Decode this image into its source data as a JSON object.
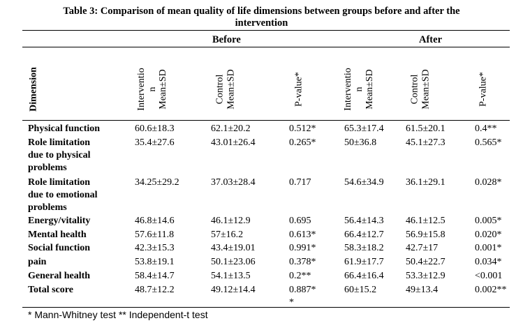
{
  "title_line1": "Table 3: Comparison of mean quality of life dimensions between groups before and after the",
  "title_line2": "intervention",
  "groups": {
    "before": "Before",
    "after": "After"
  },
  "column_headers": {
    "dimension": "Dimension",
    "intervention": "Interventio\nn\nMean±SD",
    "control": "Control\nMean±SD",
    "pvalue": "P-value*"
  },
  "rows": [
    {
      "dimension": "Physical function",
      "b_int": "60.6±18.3",
      "b_ctl": "62.1±20.2",
      "b_p": "0.512*",
      "a_int": "65.3±17.4",
      "a_ctl": "61.5±20.1",
      "a_p": "0.4**"
    },
    {
      "dimension": "Role limitation\ndue to physical\nproblems",
      "b_int": "35.4±27.6",
      "b_ctl": "43.01±26.4",
      "b_p": "0.265*",
      "a_int": "50±36.8",
      "a_ctl": "45.1±27.3",
      "a_p": "0.565*"
    },
    {
      "dimension": "Role limitation\ndue to emotional\nproblems",
      "b_int": "34.25±29.2",
      "b_ctl": "37.03±28.4",
      "b_p": "0.717",
      "a_int": "54.6±34.9",
      "a_ctl": "36.1±29.1",
      "a_p": "0.028*"
    },
    {
      "dimension": "Energy/vitality",
      "b_int": "46.8±14.6",
      "b_ctl": "46.1±12.9",
      "b_p": "0.695",
      "a_int": "56.4±14.3",
      "a_ctl": "46.1±12.5",
      "a_p": "0.005*"
    },
    {
      "dimension": "Mental health",
      "b_int": "57.6±11.8",
      "b_ctl": "57±16.2",
      "b_p": "0.613*",
      "a_int": "66.4±12.7",
      "a_ctl": "56.9±15.8",
      "a_p": "0.020*"
    },
    {
      "dimension": "Social function",
      "b_int": "42.3±15.3",
      "b_ctl": "43.4±19.01",
      "b_p": "0.991*",
      "a_int": "58.3±18.2",
      "a_ctl": "42.7±17",
      "a_p": "0.001*"
    },
    {
      "dimension": "pain",
      "b_int": "53.8±19.1",
      "b_ctl": "50.1±23.06",
      "b_p": "0.378*",
      "a_int": "61.9±17.7",
      "a_ctl": "50.4±22.7",
      "a_p": "0.034*"
    },
    {
      "dimension": "General health",
      "b_int": "58.4±14.7",
      "b_ctl": "54.1±13.5",
      "b_p": "0.2**",
      "a_int": "66.4±16.4",
      "a_ctl": "53.3±12.9",
      "a_p": "<0.001"
    },
    {
      "dimension": "Total score",
      "b_int": "48.7±12.2",
      "b_ctl": "49.12±14.4",
      "b_p": "0.887*\n*",
      "a_int": "60±15.2",
      "a_ctl": "49±13.4",
      "a_p": "0.002**"
    }
  ],
  "footnote": "* Mann-Whitney test   ** Independent-t test"
}
